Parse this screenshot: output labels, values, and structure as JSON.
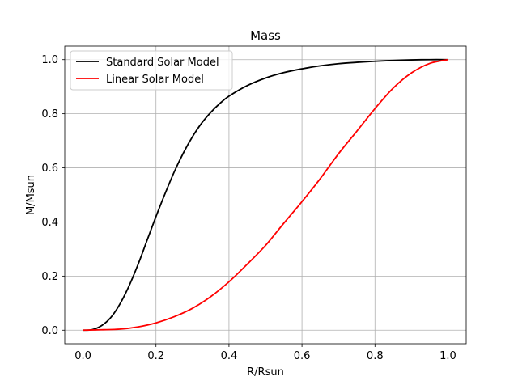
{
  "chart_data": {
    "type": "line",
    "title": "Mass",
    "xlabel": "R/Rsun",
    "ylabel": "M/Msun",
    "xlim": [
      -0.05,
      1.05
    ],
    "ylim": [
      -0.05,
      1.05
    ],
    "xticks": [
      "0.0",
      "0.2",
      "0.4",
      "0.6",
      "0.8",
      "1.0"
    ],
    "xtick_values": [
      0.0,
      0.2,
      0.4,
      0.6,
      0.8,
      1.0
    ],
    "yticks": [
      "0.0",
      "0.2",
      "0.4",
      "0.6",
      "0.8",
      "1.0"
    ],
    "ytick_values": [
      0.0,
      0.2,
      0.4,
      0.6,
      0.8,
      1.0
    ],
    "grid": true,
    "legend_position": "top-left",
    "series": [
      {
        "name": "Standard Solar Model",
        "color": "#000000",
        "x": [
          0.0,
          0.025,
          0.05,
          0.075,
          0.1,
          0.125,
          0.15,
          0.175,
          0.2,
          0.225,
          0.25,
          0.275,
          0.3,
          0.325,
          0.35,
          0.375,
          0.4,
          0.45,
          0.5,
          0.55,
          0.6,
          0.65,
          0.7,
          0.75,
          0.8,
          0.85,
          0.9,
          0.95,
          1.0
        ],
        "y": [
          0.0,
          0.002,
          0.016,
          0.045,
          0.094,
          0.16,
          0.24,
          0.33,
          0.42,
          0.505,
          0.585,
          0.655,
          0.715,
          0.765,
          0.805,
          0.838,
          0.865,
          0.904,
          0.932,
          0.952,
          0.966,
          0.977,
          0.985,
          0.99,
          0.994,
          0.997,
          0.999,
          1.0,
          1.0
        ]
      },
      {
        "name": "Linear Solar Model",
        "color": "#ff0000",
        "x": [
          0.0,
          0.05,
          0.1,
          0.15,
          0.2,
          0.25,
          0.3,
          0.35,
          0.4,
          0.45,
          0.5,
          0.55,
          0.6,
          0.65,
          0.7,
          0.75,
          0.8,
          0.85,
          0.9,
          0.95,
          1.0
        ],
        "y": [
          0.0,
          0.0016,
          0.0037,
          0.012,
          0.027,
          0.05,
          0.081,
          0.124,
          0.179,
          0.244,
          0.313,
          0.395,
          0.475,
          0.56,
          0.652,
          0.735,
          0.819,
          0.895,
          0.951,
          0.986,
          1.0
        ]
      }
    ]
  }
}
